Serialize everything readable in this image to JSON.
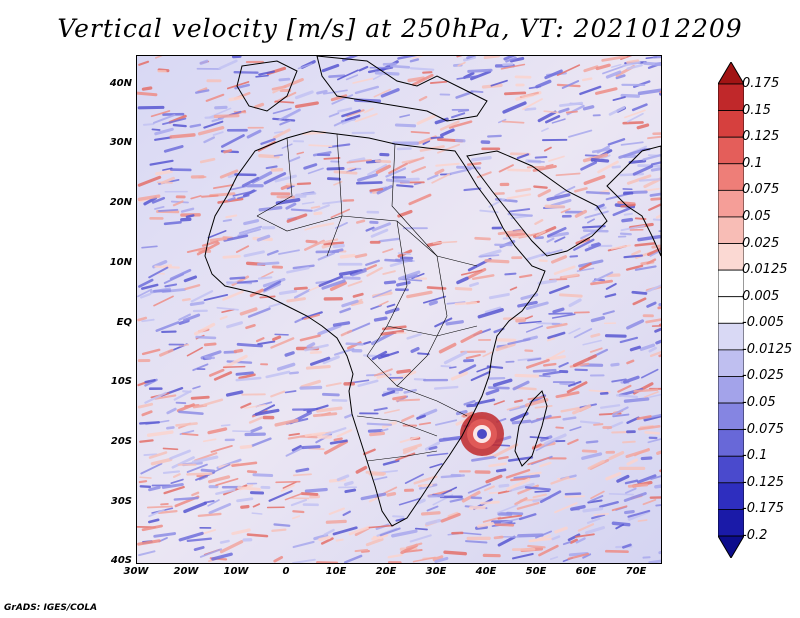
{
  "title": "Vertical velocity [m/s] at 250hPa, VT: 2021012209",
  "map": {
    "variable": "Vertical velocity",
    "units": "m/s",
    "level": "250hPa",
    "valid_time": "2021012209",
    "lat_range": [
      -40,
      45
    ],
    "lon_range": [
      -30,
      75
    ]
  },
  "y_axis_labels": [
    "40N",
    "30N",
    "20N",
    "10N",
    "EQ",
    "10S",
    "20S",
    "30S",
    "40S"
  ],
  "x_axis_labels": [
    "30W",
    "20W",
    "10W",
    "0",
    "10E",
    "20E",
    "30E",
    "40E",
    "50E",
    "60E",
    "70E"
  ],
  "colorbar": {
    "labels": [
      "0.175",
      "0.15",
      "0.125",
      "0.1",
      "0.075",
      "0.05",
      "0.025",
      "0.0125",
      "0.005",
      "-0.005",
      "-0.0125",
      "-0.025",
      "-0.05",
      "-0.075",
      "-0.1",
      "-0.125",
      "-0.175",
      "-0.2"
    ],
    "colors": [
      "#a11414",
      "#c0282a",
      "#d6403e",
      "#e45e5a",
      "#ee7e78",
      "#f59e98",
      "#f8bdb6",
      "#fbd9d3",
      "#ffffff",
      "#ffffff",
      "#d9d9f5",
      "#bfbff0",
      "#a3a3ea",
      "#8585e2",
      "#6868d8",
      "#4a4acd",
      "#2e2ebf",
      "#1a1aa8",
      "#0d0d8c"
    ]
  },
  "footer": "GrADS: IGES/COLA"
}
